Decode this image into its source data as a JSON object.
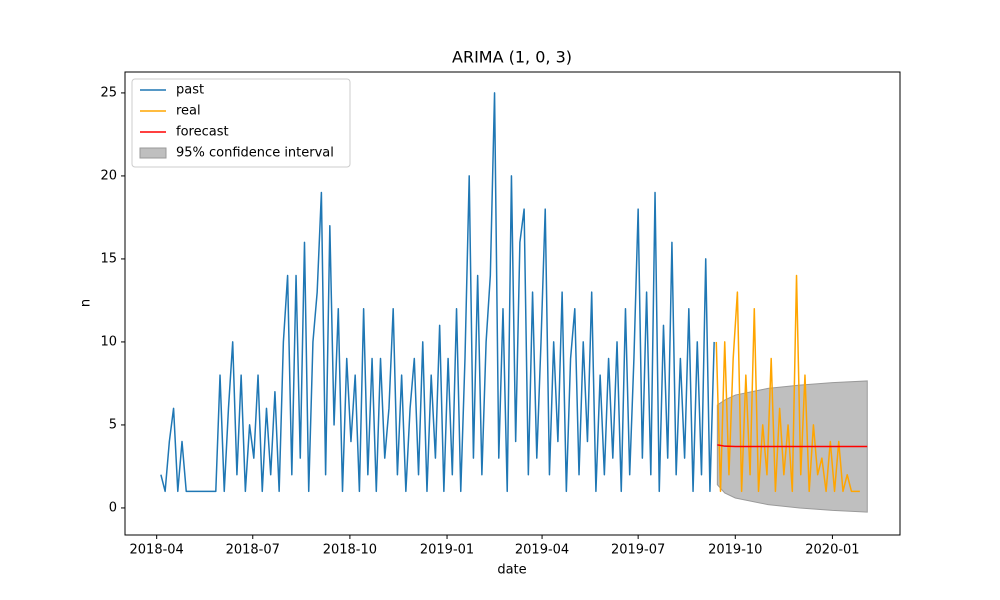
{
  "chart_data": {
    "type": "line",
    "title": "ARIMA (1, 0, 3)",
    "xlabel": "date",
    "ylabel": "n",
    "xlim": [
      "2018-03-02",
      "2020-03-05"
    ],
    "ylim": [
      -1.63,
      26.26
    ],
    "xticks": [
      "2018-04",
      "2018-07",
      "2018-10",
      "2019-01",
      "2019-04",
      "2019-07",
      "2019-10",
      "2020-01"
    ],
    "yticks": [
      0,
      5,
      10,
      15,
      20,
      25
    ],
    "legend": "upper left",
    "series": [
      {
        "name": "past",
        "color": "#1f77b4",
        "x": [
          "2018-04-05",
          "2018-04-09",
          "2018-04-13",
          "2018-04-17",
          "2018-04-21",
          "2018-04-25",
          "2018-04-29",
          "2018-05-03",
          "2018-05-07",
          "2018-05-11",
          "2018-05-15",
          "2018-05-19",
          "2018-05-23",
          "2018-05-27",
          "2018-05-31",
          "2018-06-04",
          "2018-06-08",
          "2018-06-12",
          "2018-06-16",
          "2018-06-20",
          "2018-06-24",
          "2018-06-28",
          "2018-07-02",
          "2018-07-06",
          "2018-07-10",
          "2018-07-14",
          "2018-07-18",
          "2018-07-22",
          "2018-07-26",
          "2018-07-30",
          "2018-08-03",
          "2018-08-07",
          "2018-08-11",
          "2018-08-15",
          "2018-08-19",
          "2018-08-23",
          "2018-08-27",
          "2018-08-31",
          "2018-09-04",
          "2018-09-08",
          "2018-09-12",
          "2018-09-16",
          "2018-09-20",
          "2018-09-24",
          "2018-09-28",
          "2018-10-02",
          "2018-10-06",
          "2018-10-10",
          "2018-10-14",
          "2018-10-18",
          "2018-10-22",
          "2018-10-26",
          "2018-10-30",
          "2018-11-03",
          "2018-11-07",
          "2018-11-11",
          "2018-11-15",
          "2018-11-19",
          "2018-11-23",
          "2018-11-27",
          "2018-12-01",
          "2018-12-05",
          "2018-12-09",
          "2018-12-13",
          "2018-12-17",
          "2018-12-21",
          "2018-12-25",
          "2018-12-29",
          "2019-01-02",
          "2019-01-06",
          "2019-01-10",
          "2019-01-14",
          "2019-01-18",
          "2019-01-22",
          "2019-01-26",
          "2019-01-30",
          "2019-02-03",
          "2019-02-07",
          "2019-02-11",
          "2019-02-15",
          "2019-02-19",
          "2019-02-23",
          "2019-02-27",
          "2019-03-03",
          "2019-03-07",
          "2019-03-11",
          "2019-03-15",
          "2019-03-19",
          "2019-03-23",
          "2019-03-27",
          "2019-03-31",
          "2019-04-04",
          "2019-04-08",
          "2019-04-12",
          "2019-04-16",
          "2019-04-20",
          "2019-04-24",
          "2019-04-28",
          "2019-05-02",
          "2019-05-06",
          "2019-05-10",
          "2019-05-14",
          "2019-05-18",
          "2019-05-22",
          "2019-05-26",
          "2019-05-30",
          "2019-06-03",
          "2019-06-07",
          "2019-06-11",
          "2019-06-15",
          "2019-06-19",
          "2019-06-23",
          "2019-06-27",
          "2019-07-01",
          "2019-07-05",
          "2019-07-09",
          "2019-07-13",
          "2019-07-17",
          "2019-07-21",
          "2019-07-25",
          "2019-07-29",
          "2019-08-02",
          "2019-08-06",
          "2019-08-10",
          "2019-08-14",
          "2019-08-18",
          "2019-08-22",
          "2019-08-26",
          "2019-08-30",
          "2019-09-03",
          "2019-09-07",
          "2019-09-11"
        ],
        "values": [
          2,
          1,
          4,
          6,
          1,
          4,
          1,
          1,
          1,
          1,
          1,
          1,
          1,
          1,
          8,
          1,
          6,
          10,
          2,
          8,
          1,
          5,
          3,
          8,
          1,
          6,
          2,
          7,
          1,
          10,
          14,
          2,
          14,
          3,
          16,
          1,
          10,
          13,
          19,
          2,
          17,
          5,
          12,
          1,
          9,
          4,
          8,
          1,
          12,
          2,
          9,
          1,
          9,
          3,
          6,
          12,
          2,
          8,
          1,
          6,
          9,
          2,
          10,
          1,
          8,
          3,
          11,
          1,
          9,
          2,
          12,
          1,
          9,
          20,
          3,
          14,
          2,
          10,
          14,
          25,
          3,
          12,
          1,
          20,
          4,
          16,
          18,
          2,
          13,
          3,
          10,
          18,
          2,
          10,
          4,
          13,
          1,
          9,
          12,
          2,
          10,
          4,
          13,
          1,
          8,
          2,
          9,
          3,
          10,
          1,
          12,
          2,
          9,
          18,
          3,
          13,
          2,
          19,
          1,
          11,
          3,
          16,
          2,
          9,
          3,
          12,
          1,
          10,
          2,
          15,
          1,
          10
        ]
      },
      {
        "name": "real",
        "color": "#ffa500",
        "x": [
          "2019-09-13",
          "2019-09-17",
          "2019-09-21",
          "2019-09-25",
          "2019-09-29",
          "2019-10-03",
          "2019-10-07",
          "2019-10-11",
          "2019-10-15",
          "2019-10-19",
          "2019-10-23",
          "2019-10-27",
          "2019-10-31",
          "2019-11-04",
          "2019-11-08",
          "2019-11-12",
          "2019-11-16",
          "2019-11-20",
          "2019-11-24",
          "2019-11-28",
          "2019-12-02",
          "2019-12-06",
          "2019-12-10",
          "2019-12-14",
          "2019-12-18",
          "2019-12-22",
          "2019-12-26",
          "2019-12-30",
          "2020-01-03",
          "2020-01-07",
          "2020-01-11",
          "2020-01-15",
          "2020-01-19",
          "2020-01-23",
          "2020-01-27"
        ],
        "values": [
          10,
          1,
          10,
          2,
          9,
          13,
          1,
          8,
          2,
          12,
          1,
          5,
          2,
          9,
          1,
          6,
          2,
          5,
          1,
          14,
          2,
          8,
          1,
          5,
          2,
          3,
          1,
          4,
          1,
          4,
          1,
          2,
          1,
          1,
          1
        ]
      },
      {
        "name": "forecast",
        "color": "#ff0000",
        "x": [
          "2019-09-14",
          "2019-09-21",
          "2019-10-01",
          "2019-11-01",
          "2019-12-01",
          "2020-01-01",
          "2020-02-03"
        ],
        "values": [
          3.8,
          3.72,
          3.7,
          3.7,
          3.7,
          3.7,
          3.7
        ]
      }
    ],
    "confidence_interval": {
      "name": "95% confidence interval",
      "color": "#bfbfbf",
      "x": [
        "2019-09-14",
        "2019-09-21",
        "2019-10-01",
        "2019-11-01",
        "2019-12-01",
        "2020-01-01",
        "2020-02-03"
      ],
      "lower": [
        1.4,
        0.9,
        0.6,
        0.2,
        0.0,
        -0.15,
        -0.25
      ],
      "upper": [
        6.2,
        6.5,
        6.8,
        7.2,
        7.4,
        7.55,
        7.65
      ]
    }
  }
}
